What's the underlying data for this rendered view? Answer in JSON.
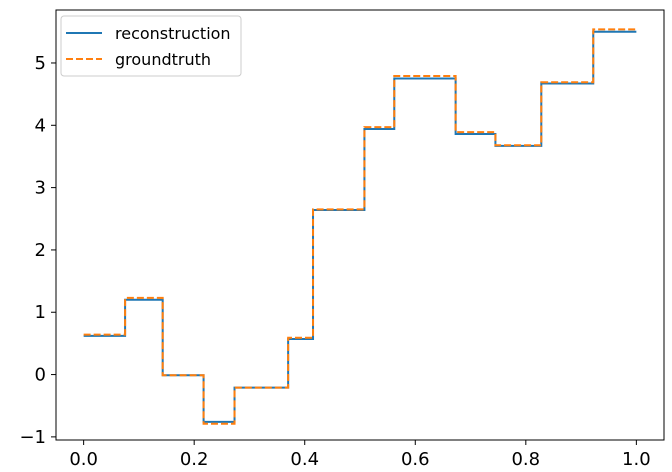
{
  "chart_data": {
    "type": "line",
    "xlim": [
      -0.05,
      1.05
    ],
    "ylim": [
      -1.05,
      5.85
    ],
    "xticks": [
      0.0,
      0.2,
      0.4,
      0.6,
      0.8,
      1.0
    ],
    "xtick_labels": [
      "0.0",
      "0.2",
      "0.4",
      "0.6",
      "0.8",
      "1.0"
    ],
    "yticks": [
      -1,
      0,
      1,
      2,
      3,
      4,
      5
    ],
    "ytick_labels": [
      "−1",
      "0",
      "1",
      "2",
      "3",
      "4",
      "5"
    ],
    "grid": false,
    "legend_position": "upper-left",
    "series": [
      {
        "name": "reconstruction",
        "style": "solid",
        "color": "#1f77b4",
        "x": [
          0.0,
          0.075,
          0.075,
          0.143,
          0.143,
          0.217,
          0.217,
          0.273,
          0.273,
          0.37,
          0.37,
          0.415,
          0.415,
          0.508,
          0.508,
          0.562,
          0.562,
          0.673,
          0.673,
          0.745,
          0.745,
          0.828,
          0.828,
          0.922,
          0.922,
          1.0
        ],
        "y": [
          0.62,
          0.62,
          1.2,
          1.2,
          -0.01,
          -0.01,
          -0.76,
          -0.76,
          -0.21,
          -0.21,
          0.57,
          0.57,
          2.64,
          2.64,
          3.94,
          3.94,
          4.75,
          4.75,
          3.86,
          3.86,
          3.67,
          3.67,
          4.67,
          4.67,
          5.5,
          5.5
        ]
      },
      {
        "name": "groundtruth",
        "style": "dashed",
        "color": "#ff7f0e",
        "x": [
          0.0,
          0.075,
          0.075,
          0.143,
          0.143,
          0.217,
          0.217,
          0.273,
          0.273,
          0.37,
          0.37,
          0.415,
          0.415,
          0.508,
          0.508,
          0.562,
          0.562,
          0.673,
          0.673,
          0.745,
          0.745,
          0.828,
          0.828,
          0.922,
          0.922,
          1.0
        ],
        "y": [
          0.64,
          0.64,
          1.23,
          1.23,
          -0.01,
          -0.01,
          -0.79,
          -0.79,
          -0.21,
          -0.21,
          0.59,
          0.59,
          2.65,
          2.65,
          3.97,
          3.97,
          4.79,
          4.79,
          3.89,
          3.89,
          3.68,
          3.68,
          4.69,
          4.69,
          5.54,
          5.54
        ]
      }
    ]
  }
}
